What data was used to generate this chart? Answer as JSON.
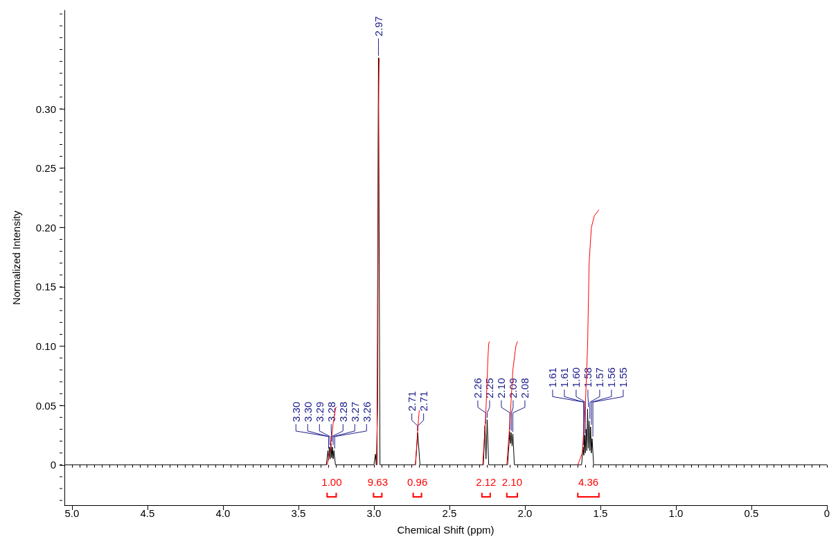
{
  "chart_data": {
    "type": "line",
    "xlabel": "Chemical Shift (ppm)",
    "ylabel": "Normalized Intensity",
    "xlim": [
      5.05,
      0
    ],
    "ylim": [
      -0.034,
      0.383
    ],
    "xticks": [
      {
        "value": 5,
        "label": "5.0"
      },
      4.5,
      {
        "value": 4,
        "label": "4.0"
      },
      3.5,
      {
        "value": 3,
        "label": "3.0"
      },
      2.5,
      {
        "value": 2,
        "label": "2.0"
      },
      1.5,
      {
        "value": 1,
        "label": "1.0"
      },
      0.5,
      0
    ],
    "yticks": [
      0,
      0.05,
      {
        "value": 0.1,
        "label": "0.10"
      },
      0.15,
      {
        "value": 0.2,
        "label": "0.20"
      },
      0.25,
      {
        "value": 0.3,
        "label": "0.30"
      }
    ],
    "grid": false,
    "marker": "none",
    "series": [
      {
        "color": "#000000",
        "x": [
          5.05,
          3.315,
          3.305,
          3.3,
          3.295,
          3.29,
          3.285,
          3.28,
          3.275,
          3.27,
          3.265,
          3.255,
          3.0,
          2.99,
          2.985,
          2.98,
          2.97,
          2.96,
          2.725,
          2.71,
          2.695,
          2.275,
          2.265,
          2.258,
          2.25,
          2.24,
          2.115,
          2.1,
          2.095,
          2.09,
          2.085,
          2.08,
          2.07,
          1.625,
          1.615,
          1.61,
          1.605,
          1.6,
          1.595,
          1.59,
          1.585,
          1.58,
          1.575,
          1.57,
          1.565,
          1.56,
          1.555,
          1.545,
          0
        ],
        "values": [
          0,
          0,
          0.012,
          0.004,
          0.015,
          0.005,
          0.018,
          0.006,
          0.015,
          0.005,
          0.012,
          0,
          0,
          0.009,
          0,
          0,
          0.343,
          0,
          0,
          0.027,
          0,
          0,
          0.033,
          0.005,
          0.038,
          0,
          0,
          0.028,
          0.018,
          0.027,
          0.016,
          0.026,
          0,
          0,
          0.015,
          0.008,
          0.025,
          0.01,
          0.03,
          0.012,
          0.047,
          0.014,
          0.037,
          0.012,
          0.032,
          0.01,
          0.022,
          0,
          0
        ]
      },
      {
        "color": "#ff0000",
        "x": [
          3.31,
          3.29,
          3.27,
          3.255,
          3.25
        ],
        "values": [
          0,
          0.012,
          0.035,
          0.047,
          0.049
        ]
      },
      {
        "color": "#ff0000",
        "x": [
          2.985,
          2.975,
          2.97,
          2.965
        ],
        "values": [
          0,
          0.05,
          0.3,
          0.343
        ]
      },
      {
        "color": "#ff0000",
        "x": [
          2.725,
          2.71,
          2.7
        ],
        "values": [
          0,
          0.03,
          0.046
        ]
      },
      {
        "color": "#ff0000",
        "x": [
          2.28,
          2.26,
          2.245,
          2.24,
          2.235
        ],
        "values": [
          0,
          0.04,
          0.09,
          0.102,
          0.104
        ]
      },
      {
        "color": "#ff0000",
        "x": [
          2.12,
          2.1,
          2.08,
          2.06,
          2.05
        ],
        "values": [
          0,
          0.035,
          0.08,
          0.1,
          0.104
        ]
      },
      {
        "color": "#ff0000",
        "x": [
          1.65,
          1.62,
          1.6,
          1.585,
          1.575,
          1.56,
          1.54,
          1.51
        ],
        "values": [
          0,
          0.01,
          0.05,
          0.1,
          0.17,
          0.2,
          0.21,
          0.215
        ]
      }
    ],
    "annotations": [
      {
        "text": "3.30",
        "x": 3.3,
        "y": 0.012
      },
      {
        "text": "3.30",
        "x": 3.3,
        "y": 0.012
      },
      {
        "text": "3.29",
        "x": 3.29,
        "y": 0.015
      },
      {
        "text": "3.28",
        "x": 3.28,
        "y": 0.018
      },
      {
        "text": "3.28",
        "x": 3.28,
        "y": 0.018
      },
      {
        "text": "3.27",
        "x": 3.27,
        "y": 0.015
      },
      {
        "text": "3.26",
        "x": 3.26,
        "y": 0.012
      },
      {
        "text": "2.97",
        "x": 2.97,
        "y": 0.343
      },
      {
        "text": "2.71",
        "x": 2.71,
        "y": 0.027
      },
      {
        "text": "2.71",
        "x": 2.71,
        "y": 0.027
      },
      {
        "text": "2.26",
        "x": 2.26,
        "y": 0.033
      },
      {
        "text": "2.25",
        "x": 2.25,
        "y": 0.038
      },
      {
        "text": "2.10",
        "x": 2.1,
        "y": 0.028
      },
      {
        "text": "2.09",
        "x": 2.09,
        "y": 0.027
      },
      {
        "text": "2.08",
        "x": 2.08,
        "y": 0.026
      },
      {
        "text": "1.61",
        "x": 1.61,
        "y": 0.015
      },
      {
        "text": "1.61",
        "x": 1.61,
        "y": 0.015
      },
      {
        "text": "1.60",
        "x": 1.6,
        "y": 0.025
      },
      {
        "text": "1.58",
        "x": 1.58,
        "y": 0.047
      },
      {
        "text": "1.57",
        "x": 1.57,
        "y": 0.037
      },
      {
        "text": "1.56",
        "x": 1.56,
        "y": 0.032
      },
      {
        "text": "1.55",
        "x": 1.55,
        "y": 0.022
      },
      "1.00",
      "9.63",
      "0.96",
      "2.12",
      "2.10",
      "4.36"
    ]
  }
}
